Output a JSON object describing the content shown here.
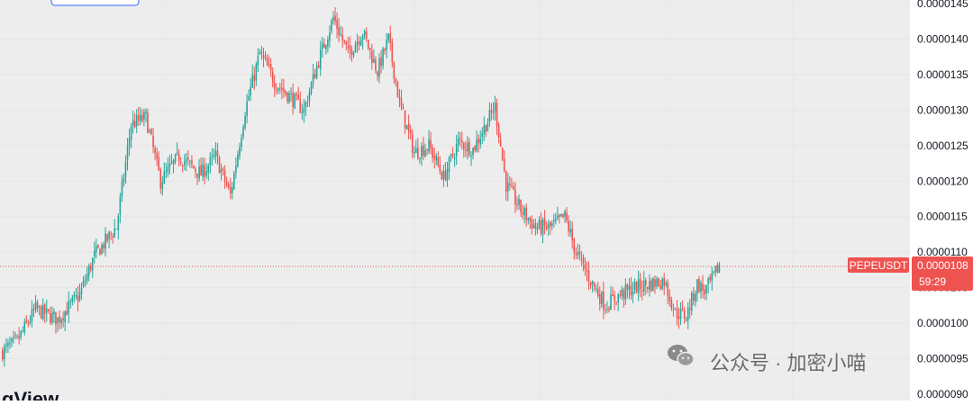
{
  "chart_data": {
    "type": "candlestick",
    "symbol": "PEPEUSDT",
    "last_price": "0.0000108",
    "countdown": "59:29",
    "ylim": [
      9e-06,
      1.45e-05
    ],
    "y_ticks": [
      "0.0000145",
      "0.0000140",
      "0.0000135",
      "0.0000130",
      "0.0000125",
      "0.0000120",
      "0.0000115",
      "0.0000110",
      "0.0000105",
      "0.0000100",
      "0.0000095",
      "0.0000090"
    ],
    "colors": {
      "up": "#26a69a",
      "down": "#ef5350",
      "price_line": "#ef5350",
      "grid": "#e6e6e6",
      "plot_bg": "#ededed"
    },
    "grid": true,
    "anchors": [
      [
        0,
        9.6
      ],
      [
        8,
        9.75
      ],
      [
        18,
        10.2
      ],
      [
        30,
        10.05
      ],
      [
        42,
        10.4
      ],
      [
        50,
        10.95
      ],
      [
        62,
        11.35
      ],
      [
        70,
        12.8
      ],
      [
        78,
        12.9
      ],
      [
        86,
        12.0
      ],
      [
        96,
        12.35
      ],
      [
        108,
        12.1
      ],
      [
        116,
        12.35
      ],
      [
        124,
        11.8
      ],
      [
        132,
        13.0
      ],
      [
        140,
        13.8
      ],
      [
        148,
        13.4
      ],
      [
        156,
        13.2
      ],
      [
        164,
        13.0
      ],
      [
        172,
        13.7
      ],
      [
        180,
        14.3
      ],
      [
        188,
        13.8
      ],
      [
        196,
        14.1
      ],
      [
        204,
        13.55
      ],
      [
        210,
        14.0
      ],
      [
        216,
        13.1
      ],
      [
        224,
        12.4
      ],
      [
        232,
        12.5
      ],
      [
        240,
        12.05
      ],
      [
        248,
        12.55
      ],
      [
        256,
        12.45
      ],
      [
        262,
        12.75
      ],
      [
        268,
        13.05
      ],
      [
        274,
        11.95
      ],
      [
        282,
        11.6
      ],
      [
        290,
        11.35
      ],
      [
        298,
        11.35
      ],
      [
        306,
        11.5
      ],
      [
        312,
        11.0
      ],
      [
        320,
        10.6
      ],
      [
        328,
        10.25
      ],
      [
        336,
        10.4
      ],
      [
        344,
        10.5
      ],
      [
        352,
        10.55
      ],
      [
        360,
        10.6
      ],
      [
        366,
        10.15
      ],
      [
        372,
        10.1
      ],
      [
        378,
        10.55
      ],
      [
        382,
        10.45
      ],
      [
        386,
        10.6
      ],
      [
        390,
        10.82
      ]
    ]
  },
  "watermark": {
    "text": "公众号 · 加密小喵"
  },
  "logo": {
    "text": "gView"
  }
}
